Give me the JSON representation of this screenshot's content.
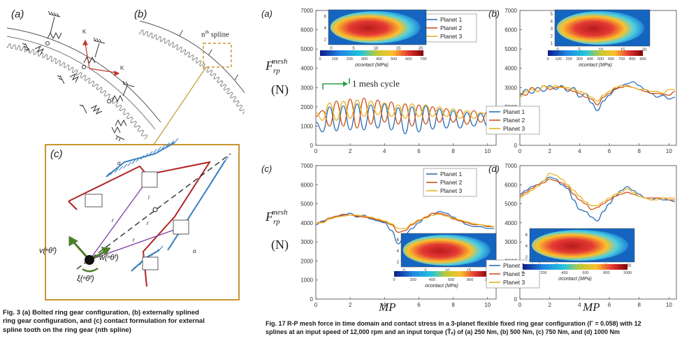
{
  "fig3": {
    "label_a": "(a)",
    "label_b": "(b)",
    "label_c": "(c)",
    "spline_label": "n",
    "spline_sup": "th",
    "spline_word": " spline",
    "caption_line1": "Fig. 3    (a) Bolted ring gear configuration, (b) externally splined",
    "caption_line2": "ring gear configuration, and (c) contact formulation for external",
    "caption_line3": "spline tooth on the ring gear (nth spline)"
  },
  "fig17": {
    "ylabel_main": "F",
    "ylabel_sup": "mesh",
    "ylabel_sub": "rp",
    "ylabel_unit": "(N)",
    "xlabel": "MP",
    "mesh_cycle_note": "1 mesh cycle",
    "caption_line1": "Fig. 17    R-P mesh force in time domain and contact stress in a 3-planet flexible fixed ring gear configuration (Γ = 0.058) with 12",
    "caption_line2": "splines at an input speed of 12,000 rpm and an input torque (T̄ₑ) of (a) 250 Nm, (b) 500 Nm, (c) 750 Nm, and (d) 1000 Nm",
    "colorbar_label": "σ",
    "colorbar_sup": "contact",
    "colorbar_unit": "(MPa)"
  },
  "chart_data": [
    {
      "type": "line",
      "panel": "(a)",
      "x": [
        0,
        0.4,
        0.8,
        1.2,
        1.6,
        2,
        2.4,
        2.8,
        3.2,
        3.6,
        4,
        4.4,
        4.8,
        5.2,
        5.6,
        6,
        6.4,
        6.8,
        7.2,
        7.6,
        8,
        8.4,
        8.8,
        9.2,
        9.6,
        10,
        10.4
      ],
      "series": [
        {
          "name": "Planet 1",
          "values": [
            1200,
            700,
            2000,
            750,
            2050,
            800,
            2150,
            800,
            2100,
            900,
            2150,
            800,
            1950,
            600,
            2000,
            700,
            2050,
            850,
            1900,
            900,
            1800,
            900,
            1700,
            1000,
            1650,
            1000,
            800
          ]
        },
        {
          "name": "Planet 2",
          "values": [
            1500,
            1800,
            1000,
            2300,
            1000,
            2400,
            900,
            2450,
            1100,
            2350,
            1200,
            2250,
            1100,
            2150,
            1000,
            2100,
            1100,
            2000,
            1200,
            1900,
            1200,
            1850,
            1100,
            1800,
            1200,
            1750,
            1600
          ]
        },
        {
          "name": "Planet 3",
          "values": [
            1700,
            1300,
            2200,
            1300,
            2300,
            1400,
            2350,
            1500,
            2300,
            1600,
            2200,
            1500,
            2100,
            1400,
            2150,
            1500,
            2100,
            1500,
            2000,
            1500,
            1900,
            1400,
            1800,
            1400,
            1700,
            1600,
            1000
          ]
        }
      ],
      "xlim": [
        0,
        10.5
      ],
      "ylim": [
        0,
        7000
      ],
      "xticks": [
        "0",
        "2",
        "4",
        "6",
        "8",
        "10"
      ],
      "yticks": [
        "0",
        "1000",
        "2000",
        "3000",
        "4000",
        "5000",
        "6000",
        "7000"
      ],
      "inset": {
        "xticks": [
          "0",
          "5",
          "10",
          "15",
          "20"
        ],
        "yticks": [
          "2",
          "4",
          "6"
        ],
        "colorbar_ticks": [
          "0",
          "100",
          "200",
          "300",
          "400",
          "500",
          "600",
          "700"
        ]
      }
    },
    {
      "type": "line",
      "panel": "(b)",
      "x": [
        0,
        0.4,
        0.8,
        1.2,
        1.6,
        2,
        2.4,
        2.8,
        3.2,
        3.6,
        4,
        4.4,
        4.8,
        5.2,
        5.6,
        6,
        6.4,
        6.8,
        7.2,
        7.6,
        8,
        8.4,
        8.8,
        9.2,
        9.6,
        10,
        10.4
      ],
      "series": [
        {
          "name": "Planet 1",
          "values": [
            2600,
            2900,
            2700,
            3000,
            2800,
            3100,
            2900,
            3100,
            2800,
            3000,
            2500,
            2700,
            2200,
            1800,
            2300,
            2600,
            2900,
            3100,
            3200,
            3300,
            3100,
            2900,
            2700,
            2500,
            2600,
            2400,
            2500
          ]
        },
        {
          "name": "Planet 2",
          "values": [
            2700,
            2600,
            3000,
            2800,
            3100,
            2900,
            3000,
            3050,
            2900,
            2800,
            2700,
            2500,
            2400,
            2100,
            2500,
            2700,
            2950,
            3000,
            3100,
            3000,
            2900,
            2800,
            2700,
            2700,
            2650,
            2600,
            2800
          ]
        },
        {
          "name": "Planet 3",
          "values": [
            2500,
            2800,
            2900,
            2800,
            3100,
            3000,
            3100,
            3000,
            3000,
            2900,
            2800,
            2700,
            2500,
            2300,
            2600,
            2800,
            3000,
            3100,
            3050,
            3000,
            2900,
            2900,
            2800,
            2800,
            2700,
            2900,
            2900
          ]
        }
      ],
      "xlim": [
        0,
        10.5
      ],
      "ylim": [
        0,
        7000
      ],
      "xticks": [
        "0",
        "2",
        "4",
        "6",
        "8",
        "10"
      ],
      "yticks": [
        "0",
        "1000",
        "2000",
        "3000",
        "4000",
        "5000",
        "6000",
        "7000"
      ],
      "inset": {
        "xticks": [
          "0",
          "5",
          "10",
          "15",
          "20"
        ],
        "yticks": [
          "1",
          "2",
          "3",
          "4",
          "5"
        ],
        "colorbar_ticks": [
          "0",
          "100",
          "200",
          "300",
          "400",
          "500",
          "600",
          "700",
          "800",
          "900"
        ]
      }
    },
    {
      "type": "line",
      "panel": "(c)",
      "x": [
        0,
        0.4,
        0.8,
        1.2,
        1.6,
        2,
        2.4,
        2.8,
        3.2,
        3.6,
        4,
        4.4,
        4.8,
        5.2,
        5.6,
        6,
        6.4,
        6.8,
        7.2,
        7.6,
        8,
        8.4,
        8.8,
        9.2,
        9.6,
        10,
        10.4
      ],
      "series": [
        {
          "name": "Planet 1",
          "values": [
            3900,
            4100,
            4200,
            4300,
            4400,
            4500,
            4300,
            4400,
            4200,
            4100,
            4000,
            3600,
            2900,
            3400,
            3700,
            4000,
            4300,
            4400,
            4600,
            4500,
            4300,
            4100,
            3900,
            3800,
            3800,
            3700,
            3700
          ]
        },
        {
          "name": "Planet 2",
          "values": [
            4000,
            4050,
            4250,
            4350,
            4450,
            4400,
            4350,
            4300,
            4250,
            4150,
            4050,
            3900,
            3500,
            3600,
            3900,
            4100,
            4300,
            4500,
            4500,
            4400,
            4200,
            4100,
            4000,
            3900,
            3900,
            3800,
            3800
          ]
        },
        {
          "name": "Planet 3",
          "values": [
            4000,
            4000,
            4200,
            4300,
            4350,
            4400,
            4400,
            4350,
            4300,
            4200,
            4100,
            3950,
            3700,
            3700,
            3950,
            4150,
            4250,
            4400,
            4450,
            4350,
            4250,
            4150,
            4050,
            3950,
            3900,
            3850,
            3800
          ]
        }
      ],
      "xlim": [
        0,
        10.5
      ],
      "ylim": [
        0,
        7000
      ],
      "xticks": [
        "0",
        "2",
        "4",
        "6",
        "8",
        "10"
      ],
      "yticks": [
        "0",
        "1000",
        "2000",
        "3000",
        "4000",
        "5000",
        "6000",
        "7000"
      ],
      "inset": {
        "xticks": [
          "0",
          "5",
          "10",
          "15",
          "20"
        ],
        "yticks": [
          "2",
          "4",
          "6"
        ],
        "colorbar_ticks": [
          "0",
          "200",
          "400",
          "600",
          "800",
          "1000"
        ]
      }
    },
    {
      "type": "line",
      "panel": "(d)",
      "x": [
        0,
        0.4,
        0.8,
        1.2,
        1.6,
        2,
        2.4,
        2.8,
        3.2,
        3.6,
        4,
        4.4,
        4.8,
        5.2,
        5.6,
        6,
        6.4,
        6.8,
        7.2,
        7.6,
        8,
        8.4,
        8.8,
        9.2,
        9.6,
        10,
        10.4
      ],
      "series": [
        {
          "name": "Planet 1",
          "values": [
            5500,
            5700,
            5900,
            6000,
            6200,
            6400,
            6300,
            6000,
            5800,
            5200,
            4700,
            4600,
            4300,
            4100,
            4600,
            5000,
            5400,
            5700,
            5900,
            5700,
            5500,
            5300,
            5200,
            5300,
            5200,
            5200,
            5100
          ]
        },
        {
          "name": "Planet 2",
          "values": [
            5400,
            5600,
            5800,
            6000,
            6100,
            6300,
            6200,
            6100,
            5900,
            5500,
            5200,
            5000,
            4700,
            4800,
            5000,
            5200,
            5400,
            5500,
            5600,
            5500,
            5400,
            5300,
            5300,
            5300,
            5300,
            5200,
            5200
          ]
        },
        {
          "name": "Planet 3",
          "values": [
            5300,
            5500,
            5700,
            5900,
            6200,
            6600,
            6500,
            6300,
            6000,
            5700,
            5400,
            5100,
            4900,
            4900,
            5100,
            5300,
            5500,
            5600,
            5800,
            5600,
            5400,
            5300,
            5200,
            5200,
            5300,
            5300,
            5300
          ]
        }
      ],
      "xlim": [
        0,
        10.5
      ],
      "ylim": [
        0,
        7000
      ],
      "xticks": [
        "0",
        "2",
        "4",
        "6",
        "8",
        "10"
      ],
      "yticks": [
        "0",
        "1000",
        "2000",
        "3000",
        "4000",
        "5000",
        "6000",
        "7000"
      ],
      "inset": {
        "xticks": [
          "0",
          "5",
          "10",
          "15",
          "20"
        ],
        "yticks": [
          "2",
          "4",
          "6"
        ],
        "colorbar_ticks": [
          "0",
          "200",
          "400",
          "600",
          "800",
          "1000"
        ]
      }
    }
  ],
  "colors": {
    "planet1": "#2f6fb5",
    "planet2": "#d0541d",
    "planet3": "#e8b321",
    "frame": "#b58a2a",
    "hatch": "#3a7fc0",
    "tooth": "#b02525"
  }
}
